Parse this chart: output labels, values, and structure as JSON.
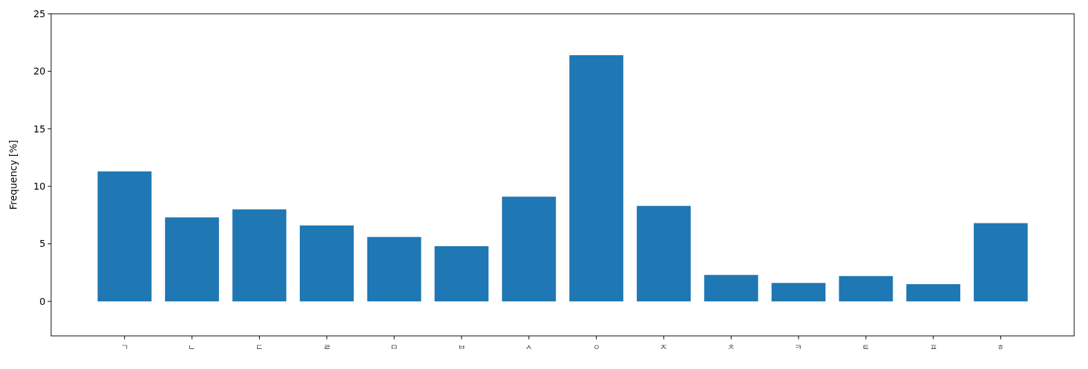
{
  "chart_data": {
    "type": "bar",
    "ylabel": "Frequency [%]",
    "categories": [
      "ㄱ",
      "ㄴ",
      "ㄷ",
      "ㄹ",
      "ㅁ",
      "ㅂ",
      "ㅅ",
      "ㅇ",
      "ㅈ",
      "ㅊ",
      "ㅋ",
      "ㅌ",
      "ㅍ",
      "ㅎ"
    ],
    "values": [
      11.3,
      7.3,
      8.0,
      6.6,
      5.6,
      4.8,
      9.1,
      21.4,
      8.3,
      2.3,
      1.6,
      2.2,
      1.5,
      6.8
    ],
    "color": "#1f77b4",
    "ylim": [
      -3,
      25
    ],
    "yticks": [
      0,
      5,
      10,
      15,
      20,
      25
    ],
    "grid": false
  }
}
